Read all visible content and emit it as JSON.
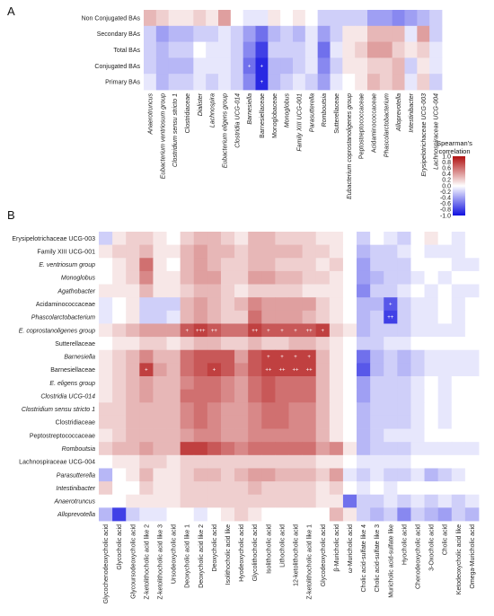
{
  "chart_data": [
    {
      "type": "heatmap",
      "panel_label": "A",
      "rows": [
        "Non Conjugated BAs",
        "Secondary BAs",
        "Total BAs",
        "Conjugated BAs",
        "Primary BAs"
      ],
      "cols": [
        "Anaerotruncus",
        "Eubacterium ventriosum group",
        "Clostridium sensu stricto 1",
        "Clostridiaceae",
        "Dialister",
        "Lachnospira",
        "Eubacterium eligens group",
        "Clostridia UCG-014",
        "Barnesiella",
        "Barnesiellaceae",
        "Monoglobaceae",
        "Monoglobus",
        "Family XIII UCG-001",
        "Parasutterella",
        "Romboutsia",
        "Sutterellaceae",
        "Eubacterium coprostanoligenes group",
        "Peptostreptococcaceae",
        "Acidaminococcaceae",
        "Phascolarctobacterium",
        "Alloprevotella",
        "Intestinibacter",
        "Erysipelotrichaceae UCG-003",
        "Lachnospiraceae UCG-004"
      ],
      "italic_cols": [
        true,
        true,
        true,
        false,
        true,
        true,
        true,
        true,
        true,
        false,
        false,
        true,
        true,
        true,
        true,
        false,
        true,
        false,
        false,
        true,
        true,
        true,
        true,
        true
      ],
      "values": [
        [
          0.3,
          0.2,
          0.1,
          0.1,
          0.2,
          0.1,
          0.4,
          0.0,
          -0.1,
          -0.1,
          0.1,
          0.0,
          0.1,
          0.0,
          -0.2,
          -0.2,
          -0.2,
          -0.2,
          -0.4,
          -0.4,
          -0.5,
          -0.4,
          -0.3,
          -0.2
        ],
        [
          -0.2,
          -0.4,
          -0.3,
          -0.3,
          -0.2,
          -0.2,
          -0.1,
          -0.2,
          -0.4,
          -0.6,
          -0.3,
          -0.2,
          -0.3,
          -0.1,
          -0.4,
          -0.2,
          0.1,
          0.1,
          0.3,
          0.3,
          0.3,
          -0.1,
          0.4,
          -0.2
        ],
        [
          -0.2,
          -0.3,
          -0.2,
          -0.2,
          0.0,
          -0.1,
          -0.1,
          -0.2,
          -0.5,
          -0.8,
          -0.2,
          -0.2,
          -0.2,
          -0.1,
          -0.6,
          -0.1,
          0.1,
          0.2,
          0.4,
          0.4,
          0.2,
          0.1,
          0.2,
          -0.1
        ],
        [
          -0.2,
          -0.3,
          -0.3,
          -0.3,
          -0.1,
          -0.1,
          -0.1,
          -0.2,
          -0.6,
          -0.9,
          -0.3,
          -0.3,
          -0.2,
          -0.1,
          -0.5,
          -0.2,
          0.1,
          0.1,
          0.2,
          0.2,
          0.3,
          -0.2,
          0.1,
          -0.1
        ],
        [
          -0.1,
          -0.3,
          -0.2,
          -0.2,
          -0.1,
          -0.2,
          -0.1,
          -0.2,
          -0.5,
          -0.9,
          -0.3,
          -0.2,
          -0.1,
          -0.2,
          -0.4,
          -0.1,
          0.0,
          0.1,
          0.3,
          0.2,
          0.3,
          -0.1,
          0.2,
          -0.2
        ]
      ],
      "annotations": [
        {
          "row": 3,
          "col": 8,
          "text": "+"
        },
        {
          "row": 3,
          "col": 9,
          "text": "+"
        },
        {
          "row": 4,
          "col": 9,
          "text": "+"
        }
      ],
      "colorbar": {
        "title_lines": [
          "Spearman's",
          "correlation"
        ],
        "range": [
          -1.0,
          1.0
        ],
        "tick_labels": [
          "1.0",
          "0.8",
          "0.6",
          "0.4",
          "0.2",
          "0.0",
          "-0.2",
          "-0.4",
          "-0.6",
          "-0.8",
          "-1.0"
        ],
        "colors": {
          "neg": "#1010e0",
          "mid": "#ffffff",
          "pos": "#b01010"
        }
      }
    },
    {
      "type": "heatmap",
      "panel_label": "B",
      "rows": [
        "Erysipelotrichaceae UCG-003",
        "Family XIII UCG-001",
        "E. ventriosum group",
        "Monoglobus",
        "Agathobacter",
        "Acidaminococcaceae",
        "Phascolarctobacterium",
        "E. coprostanoligenes group",
        "Sutterellaceae",
        "Barnesiella",
        "Barnesiellaceae",
        "E. eligens group",
        "Clostridia UCG-014",
        "Clostridium sensu stricto 1",
        "Clostridiaceae",
        "Peptostreptococcaceae",
        "Romboutsia",
        "Lachnospiraceae UCG-004",
        "Parasutterella",
        "Intestinibacter",
        "Anaerotruncus",
        "Alloprevotella"
      ],
      "italic_rows": [
        false,
        false,
        true,
        true,
        true,
        false,
        true,
        true,
        false,
        true,
        false,
        true,
        true,
        true,
        false,
        false,
        true,
        false,
        true,
        true,
        true,
        true
      ],
      "cols": [
        "Glycochenodeoxycholic acid",
        "Glycocholic acid",
        "Glycoursodeoxycholic acid",
        "Z-ketolithocholic acid like 2",
        "Z-ketolithocholic acid like 3",
        "Ursodeoxycholic acid",
        "Deoxycholic acid like 1",
        "Deoxycholic acid like 2",
        "Deoxycholic acid",
        "Isolithocholic acid like",
        "Hyodeoxycholic acid",
        "Glycolithocholic acid",
        "Isolithocholic acid",
        "Lithocholic acid",
        "12-ketolithocholic acid",
        "Z-ketolithocholic acid like 1",
        "Glycodeoxycholic acid",
        "β-Muricholic acid",
        "ω-Muricholic acid",
        "Cholic acid-sulfate like 4",
        "Cholic acid-sulfate like 3",
        "Muricholic acid-sulfate like",
        "Hyocholic acid",
        "Chenodeoxycholic acid",
        "3-Oxocholic acid",
        "Cholic acid",
        "Ketodeoxycholic acid like",
        "Omega-Muricholic acid"
      ],
      "values": [
        [
          -0.2,
          0.1,
          0.2,
          0.2,
          0.1,
          0.0,
          0.2,
          0.3,
          0.3,
          0.2,
          0.1,
          0.3,
          0.3,
          0.2,
          0.2,
          0.2,
          0.1,
          0.1,
          0.0,
          -0.2,
          0.0,
          -0.1,
          -0.2,
          0.0,
          0.1,
          0.0,
          -0.1,
          0.0
        ],
        [
          0.1,
          0.2,
          0.2,
          0.3,
          0.1,
          0.1,
          0.3,
          0.4,
          0.3,
          0.3,
          0.2,
          0.3,
          0.3,
          0.3,
          0.3,
          0.2,
          0.2,
          0.1,
          0.0,
          -0.3,
          -0.2,
          -0.2,
          -0.1,
          0.0,
          -0.1,
          -0.1,
          -0.1,
          0.0
        ],
        [
          0.0,
          0.1,
          0.2,
          0.6,
          0.1,
          0.0,
          0.3,
          0.4,
          0.3,
          0.2,
          0.2,
          0.3,
          0.3,
          0.2,
          0.2,
          0.2,
          0.1,
          0.2,
          0.0,
          -0.4,
          -0.2,
          -0.2,
          -0.2,
          0.0,
          0.0,
          0.0,
          -0.1,
          -0.1
        ],
        [
          0.0,
          0.1,
          0.2,
          0.5,
          0.1,
          0.1,
          0.3,
          0.4,
          0.4,
          0.2,
          0.2,
          0.4,
          0.4,
          0.3,
          0.3,
          0.2,
          0.2,
          0.1,
          0.0,
          -0.4,
          -0.3,
          -0.2,
          -0.2,
          -0.1,
          0.0,
          -0.1,
          0.0,
          0.0
        ],
        [
          0.1,
          0.1,
          0.1,
          0.3,
          0.1,
          0.1,
          0.2,
          0.3,
          0.3,
          0.2,
          0.1,
          0.2,
          0.2,
          0.2,
          0.2,
          0.1,
          0.1,
          0.1,
          0.0,
          -0.5,
          -0.2,
          -0.2,
          -0.1,
          0.0,
          -0.1,
          0.0,
          -0.1,
          -0.1
        ],
        [
          -0.1,
          0.0,
          0.1,
          -0.2,
          -0.2,
          -0.2,
          0.3,
          0.4,
          0.3,
          0.2,
          0.3,
          0.5,
          0.4,
          0.4,
          0.4,
          0.4,
          0.2,
          0.1,
          0.0,
          -0.3,
          -0.3,
          -0.7,
          -0.2,
          -0.1,
          -0.1,
          0.0,
          -0.1,
          0.0
        ],
        [
          -0.1,
          0.0,
          0.1,
          -0.2,
          -0.2,
          -0.1,
          0.3,
          0.4,
          0.3,
          0.2,
          0.2,
          0.6,
          0.4,
          0.4,
          0.4,
          0.3,
          0.2,
          0.1,
          0.0,
          -0.3,
          -0.2,
          -0.8,
          -0.2,
          -0.1,
          -0.1,
          0.0,
          -0.1,
          0.0
        ],
        [
          0.1,
          0.2,
          0.3,
          0.4,
          0.4,
          0.4,
          0.7,
          0.8,
          0.7,
          0.6,
          0.6,
          0.8,
          0.7,
          0.7,
          0.7,
          0.7,
          0.8,
          0.2,
          0.1,
          -0.3,
          -0.2,
          -0.2,
          -0.2,
          -0.1,
          -0.1,
          -0.1,
          -0.1,
          0.0
        ],
        [
          0.0,
          0.1,
          0.1,
          0.2,
          0.2,
          0.1,
          0.2,
          0.3,
          0.3,
          0.2,
          0.2,
          0.3,
          0.2,
          0.2,
          0.3,
          0.3,
          0.2,
          0.1,
          0.0,
          -0.2,
          -0.2,
          -0.1,
          -0.1,
          0.0,
          0.0,
          0.0,
          0.0,
          0.0
        ],
        [
          0.1,
          0.2,
          0.3,
          0.5,
          0.3,
          0.3,
          0.6,
          0.7,
          0.7,
          0.7,
          0.4,
          0.7,
          0.8,
          0.8,
          0.8,
          0.8,
          0.3,
          0.1,
          0.0,
          -0.6,
          -0.3,
          -0.2,
          -0.3,
          -0.2,
          -0.1,
          -0.1,
          -0.1,
          -0.1
        ],
        [
          0.1,
          0.2,
          0.3,
          0.8,
          0.4,
          0.3,
          0.6,
          0.7,
          0.8,
          0.7,
          0.5,
          0.7,
          0.8,
          0.8,
          0.8,
          0.8,
          0.3,
          0.1,
          0.0,
          -0.7,
          -0.3,
          -0.2,
          -0.3,
          -0.2,
          -0.1,
          -0.1,
          -0.1,
          -0.1
        ],
        [
          0.1,
          0.2,
          0.3,
          0.4,
          0.3,
          0.3,
          0.5,
          0.6,
          0.6,
          0.5,
          0.4,
          0.6,
          0.7,
          0.6,
          0.6,
          0.6,
          0.3,
          0.1,
          0.0,
          -0.4,
          -0.2,
          -0.2,
          -0.2,
          -0.1,
          0.0,
          -0.1,
          0.0,
          0.0
        ],
        [
          0.1,
          0.2,
          0.3,
          0.4,
          0.3,
          0.3,
          0.6,
          0.6,
          0.6,
          0.5,
          0.4,
          0.6,
          0.7,
          0.6,
          0.6,
          0.6,
          0.3,
          0.1,
          0.0,
          -0.4,
          -0.2,
          -0.2,
          -0.2,
          -0.1,
          0.0,
          -0.1,
          0.0,
          0.0
        ],
        [
          0.2,
          0.2,
          0.3,
          0.3,
          0.3,
          0.3,
          0.5,
          0.6,
          0.5,
          0.4,
          0.4,
          0.5,
          0.6,
          0.6,
          0.5,
          0.5,
          0.3,
          0.1,
          0.0,
          -0.3,
          -0.2,
          -0.2,
          -0.2,
          -0.1,
          0.0,
          -0.1,
          0.0,
          0.0
        ],
        [
          0.2,
          0.2,
          0.3,
          0.3,
          0.3,
          0.3,
          0.5,
          0.6,
          0.5,
          0.4,
          0.4,
          0.5,
          0.6,
          0.6,
          0.5,
          0.5,
          0.3,
          0.1,
          0.0,
          -0.3,
          -0.2,
          -0.2,
          -0.2,
          -0.1,
          0.0,
          -0.1,
          0.0,
          0.0
        ],
        [
          0.1,
          0.2,
          0.3,
          0.3,
          0.3,
          0.3,
          0.4,
          0.5,
          0.5,
          0.4,
          0.4,
          0.5,
          0.5,
          0.5,
          0.5,
          0.5,
          0.3,
          0.1,
          0.0,
          -0.3,
          -0.2,
          -0.1,
          -0.1,
          -0.1,
          0.0,
          0.0,
          0.0,
          0.0
        ],
        [
          0.2,
          0.3,
          0.3,
          0.4,
          0.3,
          0.3,
          0.8,
          0.8,
          0.7,
          0.6,
          0.5,
          0.6,
          0.6,
          0.6,
          0.6,
          0.6,
          0.4,
          0.5,
          0.1,
          -0.3,
          -0.2,
          -0.2,
          -0.2,
          -0.1,
          -0.1,
          -0.1,
          -0.1,
          -0.1
        ],
        [
          0.0,
          0.1,
          0.1,
          0.2,
          0.2,
          0.1,
          0.2,
          0.2,
          0.2,
          0.2,
          0.2,
          0.2,
          0.2,
          0.2,
          0.2,
          0.2,
          0.1,
          0.1,
          0.0,
          -0.1,
          -0.1,
          -0.1,
          -0.1,
          0.0,
          0.0,
          0.0,
          0.0,
          0.0
        ],
        [
          -0.3,
          0.0,
          0.1,
          0.3,
          0.1,
          0.1,
          0.2,
          0.3,
          0.3,
          0.2,
          0.3,
          0.4,
          0.4,
          0.3,
          0.3,
          0.3,
          0.2,
          0.4,
          -0.1,
          -0.2,
          -0.1,
          -0.2,
          -0.2,
          -0.1,
          -0.3,
          -0.2,
          -0.1,
          0.0
        ],
        [
          0.2,
          0.0,
          0.0,
          0.2,
          0.1,
          0.1,
          0.2,
          0.2,
          0.2,
          0.2,
          0.2,
          0.3,
          0.2,
          0.2,
          0.2,
          0.2,
          0.1,
          0.2,
          0.0,
          -0.1,
          0.0,
          -0.1,
          0.0,
          0.0,
          0.0,
          0.0,
          0.0,
          0.0
        ],
        [
          0.0,
          0.0,
          0.1,
          0.1,
          0.1,
          0.1,
          0.2,
          0.2,
          0.2,
          0.2,
          0.2,
          0.2,
          0.2,
          0.2,
          0.2,
          0.2,
          0.1,
          0.1,
          -0.6,
          -0.2,
          -0.2,
          -0.1,
          -0.2,
          -0.1,
          -0.2,
          -0.1,
          -0.2,
          -0.1
        ],
        [
          -0.3,
          -0.8,
          -0.2,
          -0.1,
          -0.1,
          0.0,
          0.0,
          -0.1,
          0.0,
          0.1,
          0.2,
          0.1,
          0.0,
          0.0,
          0.0,
          0.0,
          0.0,
          0.3,
          0.1,
          -0.2,
          -0.3,
          -0.2,
          -0.5,
          -0.2,
          -0.3,
          -0.4,
          -0.2,
          -0.3
        ]
      ],
      "annotations": [
        {
          "row": 5,
          "col": 21,
          "text": "+"
        },
        {
          "row": 6,
          "col": 21,
          "text": "++"
        },
        {
          "row": 7,
          "col": 6,
          "text": "+"
        },
        {
          "row": 7,
          "col": 7,
          "text": "+++"
        },
        {
          "row": 7,
          "col": 8,
          "text": "++"
        },
        {
          "row": 7,
          "col": 11,
          "text": "++"
        },
        {
          "row": 7,
          "col": 12,
          "text": "+"
        },
        {
          "row": 7,
          "col": 13,
          "text": "+"
        },
        {
          "row": 7,
          "col": 14,
          "text": "+"
        },
        {
          "row": 7,
          "col": 15,
          "text": "++"
        },
        {
          "row": 7,
          "col": 16,
          "text": "+"
        },
        {
          "row": 9,
          "col": 12,
          "text": "+"
        },
        {
          "row": 9,
          "col": 13,
          "text": "+"
        },
        {
          "row": 9,
          "col": 14,
          "text": "+"
        },
        {
          "row": 9,
          "col": 15,
          "text": "+"
        },
        {
          "row": 10,
          "col": 3,
          "text": "+"
        },
        {
          "row": 10,
          "col": 8,
          "text": "+"
        },
        {
          "row": 10,
          "col": 12,
          "text": "++"
        },
        {
          "row": 10,
          "col": 13,
          "text": "++"
        },
        {
          "row": 10,
          "col": 14,
          "text": "++"
        },
        {
          "row": 10,
          "col": 15,
          "text": "++"
        }
      ]
    }
  ]
}
